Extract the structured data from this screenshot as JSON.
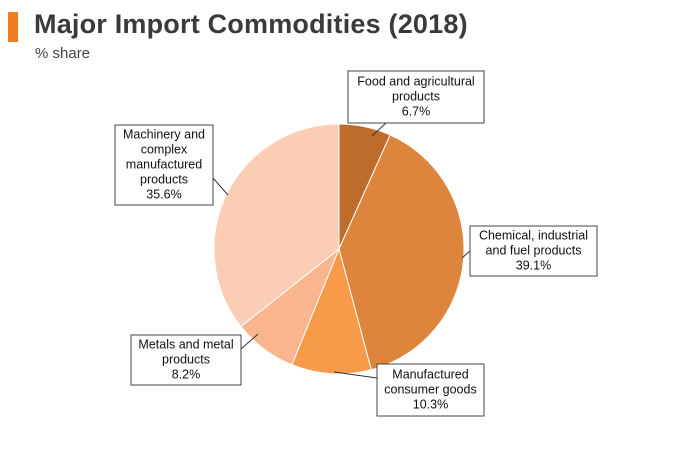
{
  "header": {
    "title": "Major Import Commodities (2018)",
    "subtitle": "% share",
    "accent_color": "#f07d21"
  },
  "chart_data": {
    "type": "pie",
    "title": "Major Import Commodities (2018)",
    "subtitle": "% share",
    "start": "top, clockwise",
    "slices": [
      {
        "label": "Food and agricultural products",
        "value": 6.7,
        "color": "#be6c2c",
        "callout": [
          "Food and agricultural",
          "products",
          "6.7%"
        ]
      },
      {
        "label": "Chemical, industrial and fuel products",
        "value": 39.1,
        "color": "#de853d",
        "callout": [
          "Chemical, industrial",
          "and fuel products",
          "39.1%"
        ]
      },
      {
        "label": "Manufactured consumer goods",
        "value": 10.3,
        "color": "#f79a4a",
        "callout": [
          "Manufactured",
          "consumer goods",
          "10.3%"
        ]
      },
      {
        "label": "Metals and metal products",
        "value": 8.2,
        "color": "#f9b68e",
        "callout": [
          "Metals and metal",
          "products",
          "8.2%"
        ]
      },
      {
        "label": "Machinery and complex manufactured products",
        "value": 35.6,
        "color": "#fbcdb5",
        "callout": [
          "Machinery and",
          "complex",
          "manufactured",
          "products",
          "35.6%"
        ]
      }
    ]
  }
}
